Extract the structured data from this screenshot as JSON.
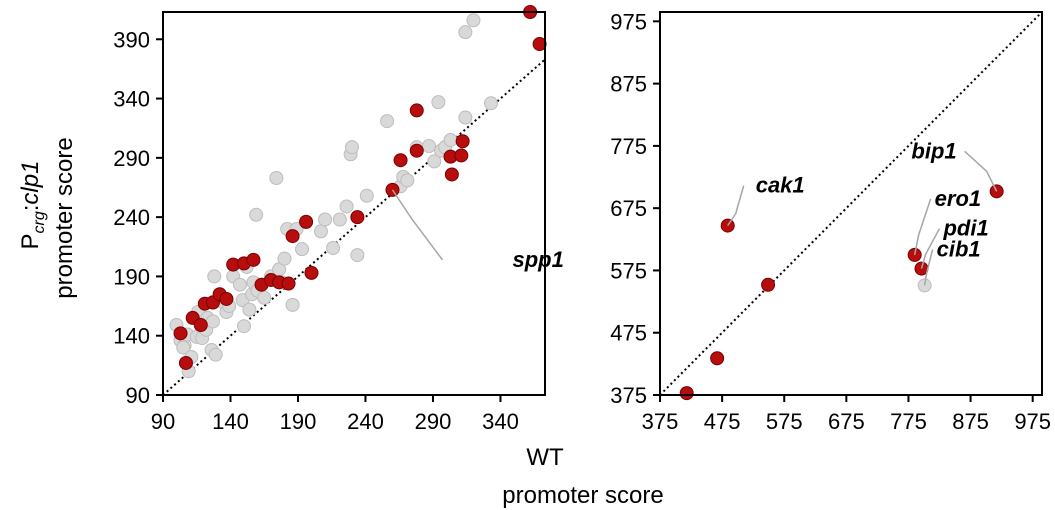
{
  "chart_data": [
    {
      "type": "scatter",
      "ylabel": {
        "p": "P",
        "sub": "crg",
        "colon": ":",
        "gene": "clp1",
        "line2": "promoter score"
      },
      "xlim": [
        90,
        373
      ],
      "ylim": [
        90,
        413
      ],
      "xticks": [
        "90",
        "140",
        "190",
        "240",
        "290",
        "340"
      ],
      "yticks": [
        "90",
        "140",
        "190",
        "240",
        "290",
        "340",
        "390"
      ],
      "grid": false,
      "colors": {
        "highlight": "#b70d0d",
        "background": "#d9d9d9",
        "highlight_edge": "#7a0000",
        "background_edge": "#bdbdbd"
      },
      "series": [
        {
          "kind": "background",
          "points": [
            [
              100,
              149
            ],
            [
              103,
              136
            ],
            [
              106,
              132
            ],
            [
              105,
              130
            ],
            [
              108,
              141
            ],
            [
              109,
              110
            ],
            [
              111,
              122
            ],
            [
              115,
              139
            ],
            [
              116,
              160
            ],
            [
              118,
              150
            ],
            [
              119,
              138
            ],
            [
              122,
              145
            ],
            [
              123,
              155
            ],
            [
              126,
              128
            ],
            [
              127,
              152
            ],
            [
              128,
              169
            ],
            [
              129,
              124
            ],
            [
              128,
              190
            ],
            [
              133,
              172
            ],
            [
              135,
              168
            ],
            [
              137,
              160
            ],
            [
              139,
              165
            ],
            [
              142,
              190
            ],
            [
              147,
              183
            ],
            [
              149,
              170
            ],
            [
              150,
              148
            ],
            [
              152,
              198
            ],
            [
              154,
              162
            ],
            [
              156,
              175
            ],
            [
              157,
              185
            ],
            [
              159,
              242
            ],
            [
              160,
              178
            ],
            [
              165,
              172
            ],
            [
              170,
              190
            ],
            [
              174,
              273
            ],
            [
              176,
              196
            ],
            [
              178,
              185
            ],
            [
              180,
              205
            ],
            [
              182,
              230
            ],
            [
              186,
              166
            ],
            [
              189,
              230
            ],
            [
              193,
              213
            ],
            [
              196,
              236
            ],
            [
              207,
              228
            ],
            [
              210,
              238
            ],
            [
              216,
              214
            ],
            [
              221,
              238
            ],
            [
              226,
              249
            ],
            [
              229,
              293
            ],
            [
              230,
              299
            ],
            [
              234,
              208
            ],
            [
              241,
              258
            ],
            [
              256,
              321
            ],
            [
              266,
              266
            ],
            [
              268,
              274
            ],
            [
              271,
              271
            ],
            [
              278,
              299
            ],
            [
              287,
              300
            ],
            [
              291,
              287
            ],
            [
              294,
              337
            ],
            [
              296,
              296
            ],
            [
              299,
              299
            ],
            [
              303,
              305
            ],
            [
              314,
              396
            ],
            [
              314,
              324
            ],
            [
              320,
              406
            ],
            [
              333,
              336
            ]
          ]
        },
        {
          "kind": "highlight",
          "points": [
            [
              103,
              142
            ],
            [
              107,
              117
            ],
            [
              112,
              155
            ],
            [
              118,
              149
            ],
            [
              121,
              167
            ],
            [
              127,
              168
            ],
            [
              132,
              175
            ],
            [
              137,
              171
            ],
            [
              142,
              200
            ],
            [
              150,
              201
            ],
            [
              157,
              204
            ],
            [
              163,
              183
            ],
            [
              170,
              187
            ],
            [
              176,
              185
            ],
            [
              183,
              184
            ],
            [
              186,
              224
            ],
            [
              196,
              236
            ],
            [
              200,
              193
            ],
            [
              234,
              240
            ],
            [
              260,
              263
            ],
            [
              266,
              288
            ],
            [
              278,
              296
            ],
            [
              278,
              330
            ],
            [
              303,
              291
            ],
            [
              304,
              276
            ],
            [
              311,
              292
            ],
            [
              312,
              304
            ],
            [
              362,
              413
            ],
            [
              369,
              386
            ]
          ]
        }
      ],
      "reference_line": "y = x",
      "annotations": [
        {
          "text": "spp1",
          "x": 260,
          "y": 263
        }
      ]
    },
    {
      "type": "scatter",
      "xlabel": "WT",
      "xlabel_line2": "promoter score",
      "xlim": [
        375,
        990
      ],
      "ylim": [
        375,
        990
      ],
      "xticks": [
        "375",
        "475",
        "575",
        "675",
        "775",
        "875",
        "975"
      ],
      "yticks": [
        "375",
        "475",
        "575",
        "675",
        "775",
        "875",
        "975"
      ],
      "grid": false,
      "series": [
        {
          "kind": "highlight",
          "points": [
            [
              418,
              378
            ],
            [
              467,
              434
            ],
            [
              484,
              647
            ],
            [
              549,
              552
            ],
            [
              785,
              600
            ],
            [
              796,
              578
            ],
            [
              917,
              702
            ]
          ]
        },
        {
          "kind": "background",
          "points": [
            [
              801,
              551
            ]
          ]
        }
      ],
      "reference_line": "y = x",
      "annotations": [
        {
          "text": "cak1",
          "x": 484,
          "y": 647
        },
        {
          "text": "bip1",
          "x": 917,
          "y": 702
        },
        {
          "text": "ero1",
          "x": 785,
          "y": 600
        },
        {
          "text": "pdi1",
          "x": 796,
          "y": 578
        },
        {
          "text": "cib1",
          "x": 801,
          "y": 551
        }
      ]
    }
  ]
}
